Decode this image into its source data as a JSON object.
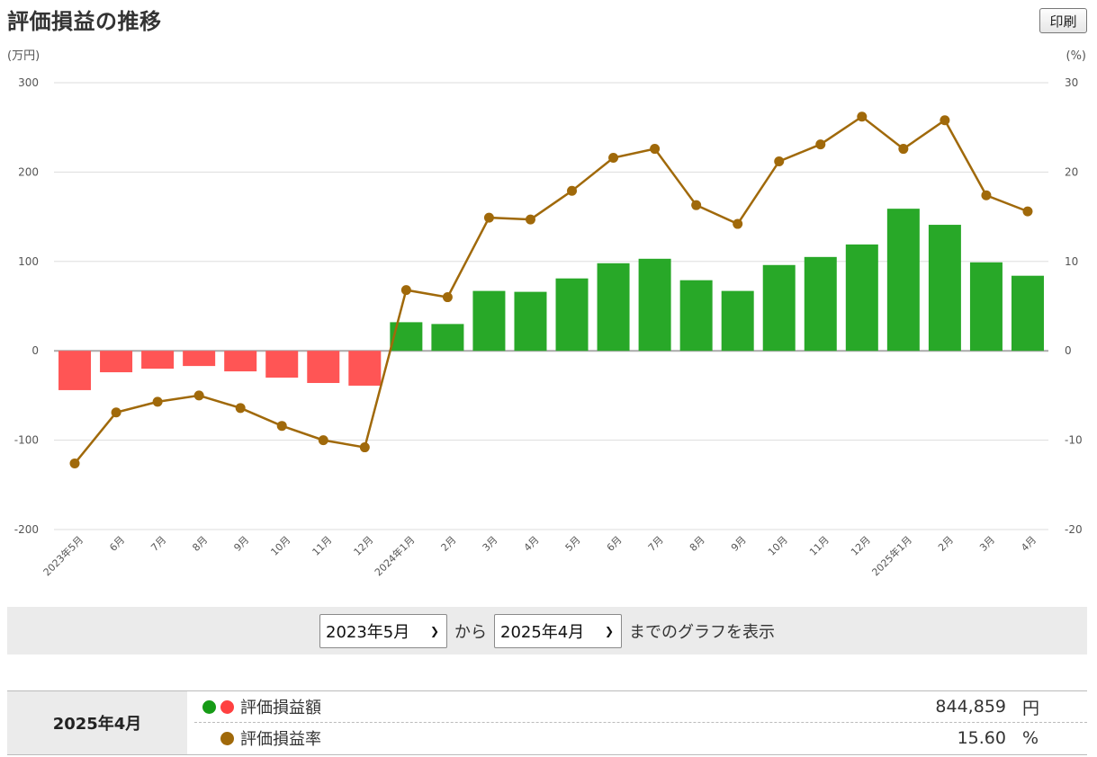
{
  "header": {
    "title": "評価損益の推移",
    "print_label": "印刷"
  },
  "colors": {
    "positive_bar": "#28a828",
    "negative_bar": "#ff5555",
    "rate_line": "#a0690a",
    "grid": "#dddddd",
    "zero_axis": "#aaaaaa"
  },
  "chart_data": {
    "type": "bar",
    "left_unit": "(万円)",
    "right_unit": "(%)",
    "categories": [
      "2023年5月",
      "6月",
      "7月",
      "8月",
      "9月",
      "10月",
      "11月",
      "12月",
      "2024年1月",
      "2月",
      "3月",
      "4月",
      "5月",
      "6月",
      "7月",
      "8月",
      "9月",
      "10月",
      "11月",
      "12月",
      "2025年1月",
      "2月",
      "3月",
      "4月"
    ],
    "y_left_ticks": [
      300,
      200,
      100,
      0,
      -100,
      -200
    ],
    "y_right_ticks": [
      30,
      20,
      10,
      0,
      -10,
      -20
    ],
    "ylim_left": [
      -200,
      300
    ],
    "ylim_right": [
      -20,
      30
    ],
    "grid": true,
    "series": [
      {
        "type": "bar",
        "axis": "left",
        "values": [
          -44,
          -24,
          -20,
          -17,
          -23,
          -30,
          -36,
          -39,
          32,
          30,
          67,
          66,
          81,
          98,
          103,
          79,
          67,
          96,
          105,
          119,
          159,
          141,
          99,
          84
        ]
      },
      {
        "type": "line",
        "axis": "right",
        "values": [
          -12.6,
          -6.9,
          -5.7,
          -5.0,
          -6.4,
          -8.4,
          -10.0,
          -10.8,
          6.8,
          6.0,
          14.9,
          14.7,
          17.9,
          21.6,
          22.6,
          16.3,
          14.2,
          21.2,
          23.1,
          26.2,
          22.6,
          25.8,
          17.4,
          15.6
        ]
      }
    ]
  },
  "range_selector": {
    "from_value": "2023年5月",
    "from_text": "から",
    "to_value": "2025年4月",
    "to_text": "までのグラフを表示"
  },
  "summary": {
    "date": "2025年4月",
    "amount_label": "評価損益額",
    "amount_value": "844,859",
    "amount_unit": "円",
    "rate_label": "評価損益率",
    "rate_value": "15.60",
    "rate_unit": "%"
  }
}
